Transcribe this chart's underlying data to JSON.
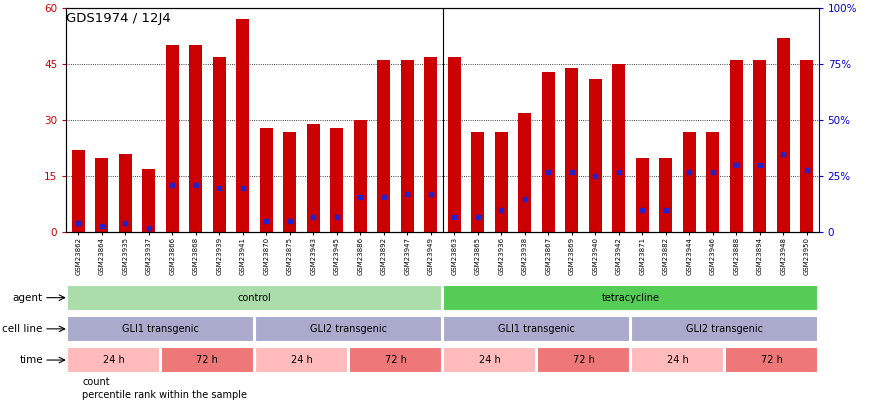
{
  "title": "GDS1974 / 12J4",
  "samples": [
    "GSM23862",
    "GSM23864",
    "GSM23935",
    "GSM23937",
    "GSM23866",
    "GSM23868",
    "GSM23939",
    "GSM23941",
    "GSM23870",
    "GSM23875",
    "GSM23943",
    "GSM23945",
    "GSM23886",
    "GSM23892",
    "GSM23947",
    "GSM23949",
    "GSM23863",
    "GSM23865",
    "GSM23936",
    "GSM23938",
    "GSM23867",
    "GSM23869",
    "GSM23940",
    "GSM23942",
    "GSM23871",
    "GSM23882",
    "GSM23944",
    "GSM23946",
    "GSM23888",
    "GSM23894",
    "GSM23948",
    "GSM23950"
  ],
  "count_values": [
    22,
    20,
    21,
    17,
    50,
    50,
    47,
    57,
    28,
    27,
    29,
    28,
    30,
    46,
    46,
    47,
    47,
    27,
    27,
    32,
    43,
    44,
    41,
    45,
    20,
    20,
    27,
    27,
    46,
    46,
    52,
    46
  ],
  "percentile_values": [
    4,
    3,
    4,
    2,
    21,
    21,
    20,
    20,
    5,
    5,
    7,
    7,
    16,
    16,
    17,
    17,
    7,
    7,
    10,
    15,
    27,
    27,
    25,
    27,
    10,
    10,
    27,
    27,
    30,
    30,
    35,
    28
  ],
  "bar_color": "#cc0000",
  "dot_color": "#2222cc",
  "ylim_left": [
    0,
    60
  ],
  "ylim_right": [
    0,
    100
  ],
  "yticks_left": [
    0,
    15,
    30,
    45,
    60
  ],
  "ytick_labels_left": [
    "0",
    "15",
    "30",
    "45",
    "60"
  ],
  "yticks_right": [
    0,
    25,
    50,
    75,
    100
  ],
  "ytick_labels_right": [
    "0",
    "25%",
    "50%",
    "75%",
    "100%"
  ],
  "agent_groups": [
    {
      "label": "control",
      "start": 0,
      "end": 16,
      "color": "#aaddaa"
    },
    {
      "label": "tetracycline",
      "start": 16,
      "end": 32,
      "color": "#55cc55"
    }
  ],
  "cell_line_groups": [
    {
      "label": "GLI1 transgenic",
      "start": 0,
      "end": 8,
      "color": "#aaaacc"
    },
    {
      "label": "GLI2 transgenic",
      "start": 8,
      "end": 16,
      "color": "#aaaacc"
    },
    {
      "label": "GLI1 transgenic",
      "start": 16,
      "end": 24,
      "color": "#aaaacc"
    },
    {
      "label": "GLI2 transgenic",
      "start": 24,
      "end": 32,
      "color": "#aaaacc"
    }
  ],
  "time_groups": [
    {
      "label": "24 h",
      "start": 0,
      "end": 4,
      "color": "#ffbbbb"
    },
    {
      "label": "72 h",
      "start": 4,
      "end": 8,
      "color": "#ee7777"
    },
    {
      "label": "24 h",
      "start": 8,
      "end": 12,
      "color": "#ffbbbb"
    },
    {
      "label": "72 h",
      "start": 12,
      "end": 16,
      "color": "#ee7777"
    },
    {
      "label": "24 h",
      "start": 16,
      "end": 20,
      "color": "#ffbbbb"
    },
    {
      "label": "72 h",
      "start": 20,
      "end": 24,
      "color": "#ee7777"
    },
    {
      "label": "24 h",
      "start": 24,
      "end": 28,
      "color": "#ffbbbb"
    },
    {
      "label": "72 h",
      "start": 28,
      "end": 32,
      "color": "#ee7777"
    }
  ],
  "legend_items": [
    {
      "label": "count",
      "color": "#cc0000"
    },
    {
      "label": "percentile rank within the sample",
      "color": "#2222cc"
    }
  ],
  "row_labels": [
    "agent",
    "cell line",
    "time"
  ],
  "background_color": "#ffffff",
  "plot_bg_color": "#ffffff"
}
